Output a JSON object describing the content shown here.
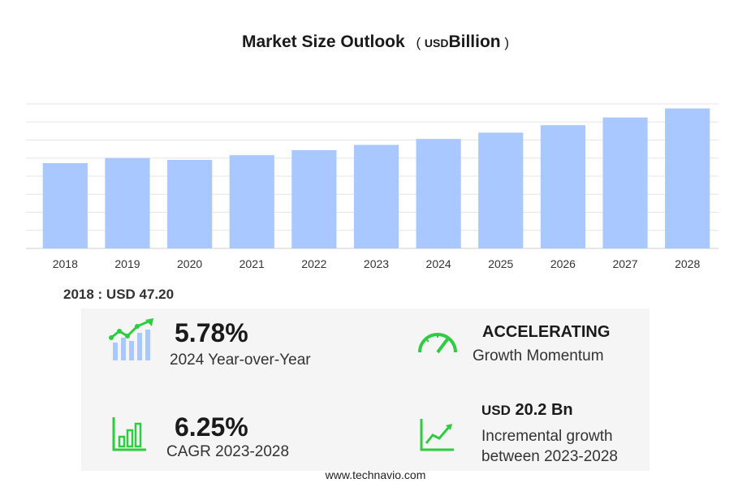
{
  "chart_data": {
    "type": "bar",
    "title": "Market Size Outlook",
    "unit_prefix": "USD",
    "unit_main": "Billion",
    "categories": [
      "2018",
      "2019",
      "2020",
      "2021",
      "2022",
      "2023",
      "2024",
      "2025",
      "2026",
      "2027",
      "2028"
    ],
    "values": [
      47.2,
      50.0,
      49.0,
      51.6,
      54.4,
      57.3,
      60.6,
      64.1,
      68.2,
      72.5,
      77.5
    ],
    "ylim": [
      0,
      80
    ],
    "grid": true,
    "bar_color": "#a8c8ff"
  },
  "base_year_label": "2018 : USD  47.20",
  "stats": {
    "yoy": {
      "value": "5.78%",
      "caption": "2024 Year-over-Year",
      "icon": "growth-chart-icon"
    },
    "momentum": {
      "title": "ACCELERATING",
      "caption": "Growth Momentum",
      "icon": "speedometer-icon"
    },
    "cagr": {
      "value": "6.25%",
      "caption": "CAGR 2023-2028",
      "icon": "bar-chart-icon"
    },
    "incremental": {
      "unit": "USD",
      "value": "20.2 Bn",
      "caption_line1": "Incremental growth",
      "caption_line2": "between 2023-2028",
      "icon": "trend-line-icon"
    }
  },
  "colors": {
    "accent_green": "#2ecc40",
    "accent_blue": "#4a7fd6"
  },
  "source": "www.technavio.com"
}
